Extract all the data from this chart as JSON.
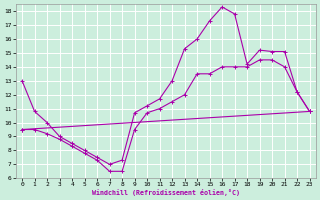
{
  "xlabel": "Windchill (Refroidissement éolien,°C)",
  "bg_color": "#cceedd",
  "line_color": "#aa00aa",
  "grid_color": "#ffffff",
  "xlim": [
    -0.5,
    23.5
  ],
  "ylim": [
    6,
    18.5
  ],
  "xticks": [
    0,
    1,
    2,
    3,
    4,
    5,
    6,
    7,
    8,
    9,
    10,
    11,
    12,
    13,
    14,
    15,
    16,
    17,
    18,
    19,
    20,
    21,
    22,
    23
  ],
  "yticks": [
    6,
    7,
    8,
    9,
    10,
    11,
    12,
    13,
    14,
    15,
    16,
    17,
    18
  ],
  "line1_x": [
    0,
    1,
    2,
    3,
    4,
    5,
    6,
    7,
    8,
    9,
    10,
    11,
    12,
    13,
    14,
    15,
    16,
    17,
    18,
    19,
    20,
    21,
    22,
    23
  ],
  "line1_y": [
    13.0,
    10.8,
    10.0,
    9.0,
    8.5,
    8.0,
    7.5,
    7.0,
    7.3,
    10.7,
    11.2,
    11.7,
    13.0,
    15.3,
    16.0,
    17.3,
    18.3,
    17.8,
    14.2,
    15.2,
    15.1,
    15.1,
    12.2,
    10.8
  ],
  "line2_x": [
    0,
    1,
    2,
    3,
    4,
    5,
    6,
    7,
    8,
    9,
    10,
    11,
    12,
    13,
    14,
    15,
    16,
    17,
    18,
    19,
    20,
    21,
    22,
    23
  ],
  "line2_y": [
    9.5,
    9.5,
    9.2,
    8.8,
    8.3,
    7.8,
    7.3,
    6.5,
    6.5,
    9.5,
    10.7,
    11.0,
    11.5,
    12.0,
    13.5,
    13.5,
    14.0,
    14.0,
    14.0,
    14.5,
    14.5,
    14.0,
    12.2,
    10.8
  ],
  "line3_x": [
    0,
    23
  ],
  "line3_y": [
    9.5,
    10.8
  ]
}
